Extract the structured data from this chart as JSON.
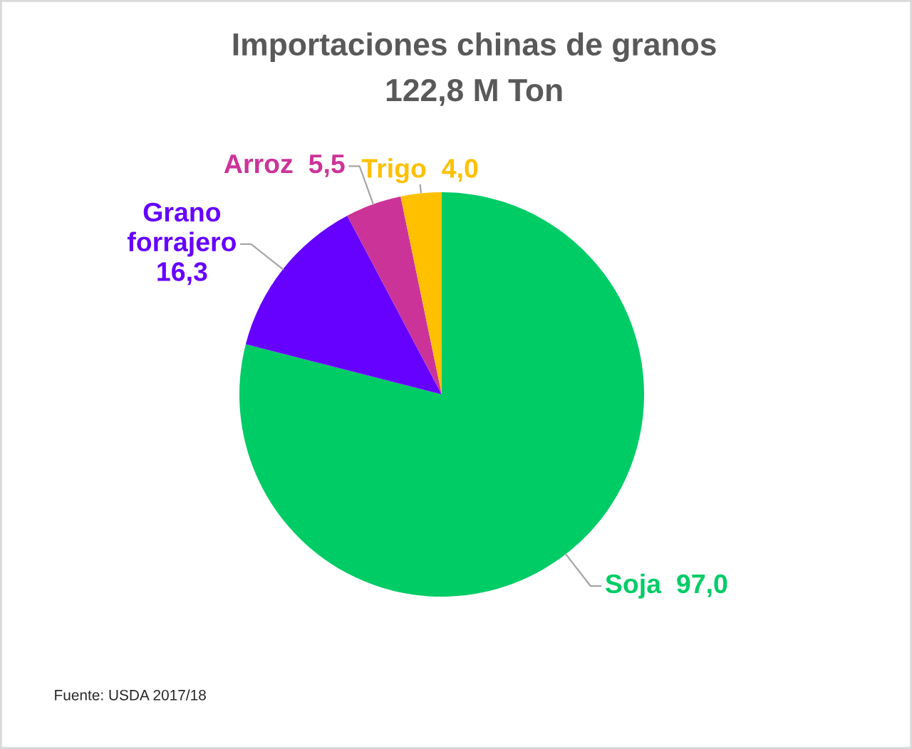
{
  "chart_data": {
    "type": "pie",
    "title": "Importaciones chinas de granos",
    "subtitle": "122,8 M Ton",
    "categories": [
      "Soja",
      "Grano forrajero",
      "Arroz",
      "Trigo"
    ],
    "values": [
      97.0,
      16.3,
      5.5,
      4.0
    ],
    "colors": [
      "#00cc66",
      "#6600ff",
      "#cc3399",
      "#ffc000"
    ],
    "value_labels": [
      "97,0",
      "16,3",
      "5,5",
      "4,0"
    ],
    "annotations": [
      "Fuente: USDA 2017/18"
    ]
  }
}
